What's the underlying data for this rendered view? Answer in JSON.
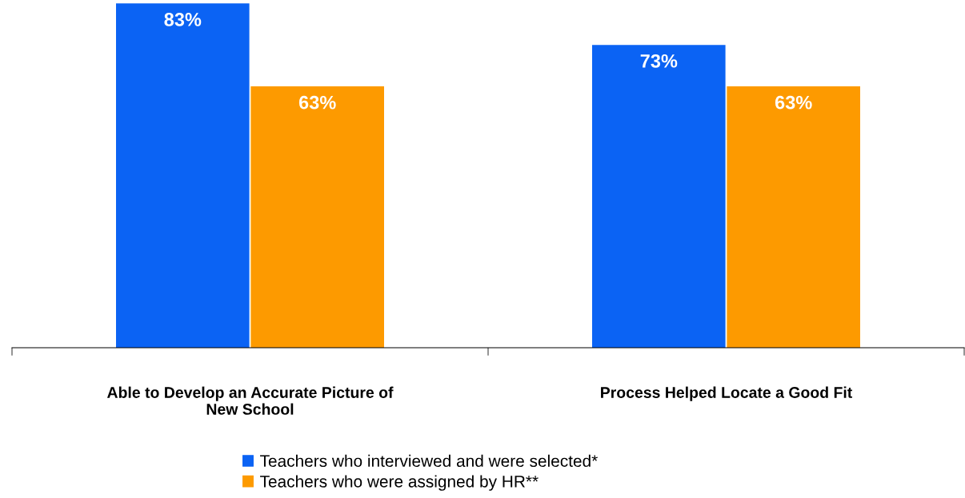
{
  "chart_data": {
    "type": "bar",
    "categories": [
      "Able to Develop an Accurate Picture of\nNew School",
      "Process Helped Locate a Good Fit"
    ],
    "series": [
      {
        "name": "Teachers who interviewed and were selected*",
        "color": "#0b63f4",
        "values": [
          83,
          73
        ],
        "value_labels": [
          "83%",
          "73%"
        ]
      },
      {
        "name": "Teachers who were assigned by HR**",
        "color": "#fd9a00",
        "values": [
          63,
          63
        ],
        "value_labels": [
          "63%",
          "63%"
        ]
      }
    ],
    "tick_labels": "x",
    "grid": false,
    "legend": "bottom"
  }
}
